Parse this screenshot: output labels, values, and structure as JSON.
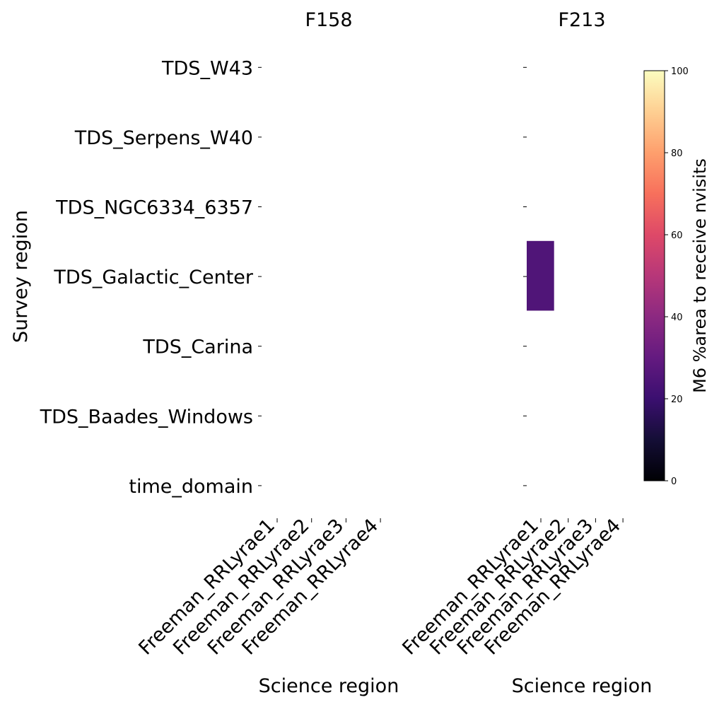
{
  "chart_data": {
    "type": "heatmap",
    "ylabel": "Survey region",
    "y_categories": [
      "TDS_W43",
      "TDS_Serpens_W40",
      "TDS_NGC6334_6357",
      "TDS_Galactic_Center",
      "TDS_Carina",
      "TDS_Baades_Windows",
      "time_domain"
    ],
    "panels": [
      {
        "title": "F158",
        "xlabel": "Science region",
        "x_categories": [
          "Freeman_RRLyrae1",
          "Freeman_RRLyrae2",
          "Freeman_RRLyrae3",
          "Freeman_RRLyrae4"
        ],
        "cells": []
      },
      {
        "title": "F213",
        "xlabel": "Science region",
        "x_categories": [
          "Freeman_RRLyrae1",
          "Freeman_RRLyrae2",
          "Freeman_RRLyrae3",
          "Freeman_RRLyrae4"
        ],
        "cells": [
          {
            "x": "Freeman_RRLyrae1",
            "y": "TDS_Galactic_Center",
            "value": 25
          }
        ]
      }
    ],
    "colorbar": {
      "label": "M6 %area to receive nvisits",
      "colormap": "magma",
      "range": [
        0,
        100
      ],
      "ticks": [
        0,
        20,
        40,
        60,
        80,
        100
      ]
    }
  }
}
